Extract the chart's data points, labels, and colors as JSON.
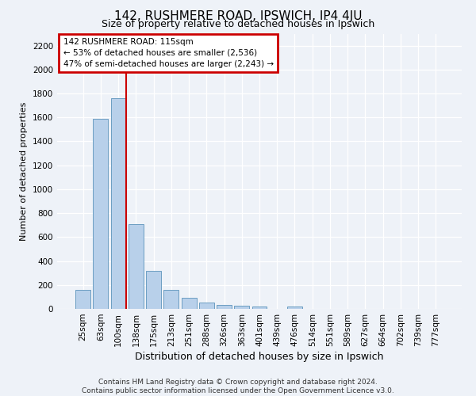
{
  "title": "142, RUSHMERE ROAD, IPSWICH, IP4 4JU",
  "subtitle": "Size of property relative to detached houses in Ipswich",
  "xlabel": "Distribution of detached houses by size in Ipswich",
  "ylabel": "Number of detached properties",
  "footer_line1": "Contains HM Land Registry data © Crown copyright and database right 2024.",
  "footer_line2": "Contains public sector information licensed under the Open Government Licence v3.0.",
  "categories": [
    "25sqm",
    "63sqm",
    "100sqm",
    "138sqm",
    "175sqm",
    "213sqm",
    "251sqm",
    "288sqm",
    "326sqm",
    "363sqm",
    "401sqm",
    "439sqm",
    "476sqm",
    "514sqm",
    "551sqm",
    "589sqm",
    "627sqm",
    "664sqm",
    "702sqm",
    "739sqm",
    "777sqm"
  ],
  "values": [
    160,
    1590,
    1760,
    710,
    315,
    160,
    90,
    55,
    35,
    25,
    20,
    0,
    20,
    0,
    0,
    0,
    0,
    0,
    0,
    0,
    0
  ],
  "bar_color": "#b8d0ea",
  "bar_edge_color": "#6b9dc2",
  "vline_color": "#cc0000",
  "vline_x_index": 2.43,
  "annotation_text": "142 RUSHMERE ROAD: 115sqm\n← 53% of detached houses are smaller (2,536)\n47% of semi-detached houses are larger (2,243) →",
  "annotation_box_edgecolor": "#cc0000",
  "annotation_box_facecolor": "#ffffff",
  "ylim": [
    0,
    2300
  ],
  "yticks": [
    0,
    200,
    400,
    600,
    800,
    1000,
    1200,
    1400,
    1600,
    1800,
    2000,
    2200
  ],
  "bg_color": "#eef2f8",
  "plot_bg_color": "#eef2f8",
  "grid_color": "#ffffff",
  "title_fontsize": 11,
  "subtitle_fontsize": 9,
  "ylabel_fontsize": 8,
  "xlabel_fontsize": 9,
  "tick_fontsize": 7.5,
  "annotation_fontsize": 7.5,
  "footer_fontsize": 6.5
}
